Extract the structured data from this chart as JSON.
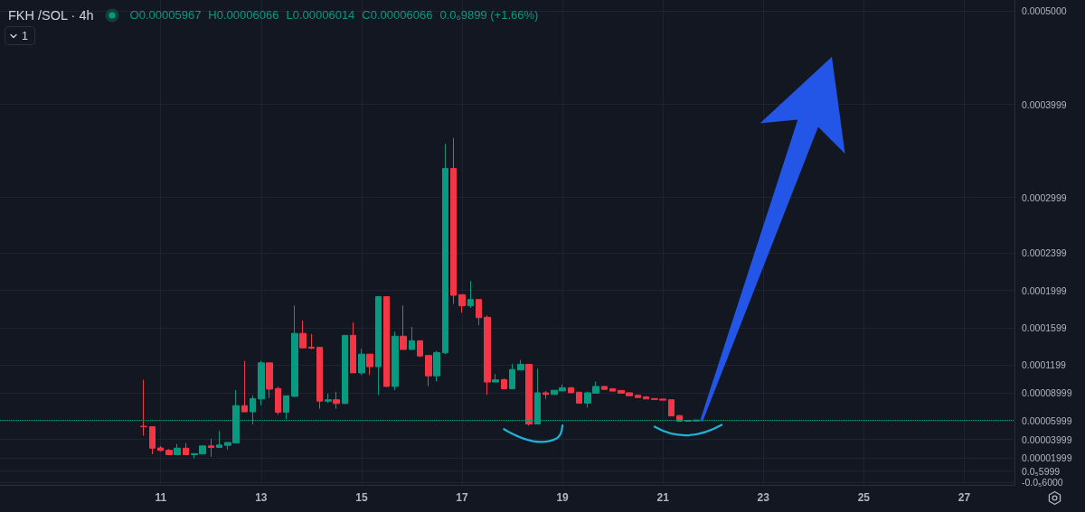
{
  "chart_data": {
    "type": "candlestick",
    "title": "FKH /SOL · 4h",
    "annotations": [
      "O0.00005967",
      "H0.00006066",
      "L0.00006014",
      "C0.00006066",
      "0.0₆9899 (+1.66%)",
      "1"
    ],
    "x": [
      10.667,
      10.833,
      11,
      11.167,
      11.333,
      11.5,
      11.667,
      11.833,
      12,
      12.167,
      12.333,
      12.5,
      12.667,
      12.833,
      13,
      13.167,
      13.333,
      13.5,
      13.667,
      13.833,
      14,
      14.167,
      14.333,
      14.5,
      14.667,
      14.833,
      15,
      15.167,
      15.333,
      15.5,
      15.667,
      15.833,
      16,
      16.167,
      16.333,
      16.5,
      16.667,
      16.833,
      17,
      17.167,
      17.333,
      17.5,
      17.667,
      17.833,
      18,
      18.167,
      18.333,
      18.5,
      18.667,
      18.833,
      19,
      19.167,
      19.333,
      19.5,
      19.667,
      19.833,
      20,
      20.167,
      20.333,
      20.5,
      20.667,
      20.833,
      21,
      21.167,
      21.333,
      21.5,
      21.667
    ],
    "ohlc": [
      [
        5.4e-05,
        0.000104,
        4.4e-05,
        5.35e-05
      ],
      [
        5.35e-05,
        5.35e-05,
        2.4e-05,
        3.05e-05
      ],
      [
        3.08e-05,
        3.29e-05,
        2.7e-05,
        2.8e-05
      ],
      [
        2.82e-05,
        2.96e-05,
        2.35e-05,
        2.35e-05
      ],
      [
        2.35e-05,
        3.49e-05,
        2.35e-05,
        3.05e-05
      ],
      [
        3.05e-05,
        3.6e-05,
        2.35e-05,
        2.35e-05
      ],
      [
        2.35e-05,
        2.51e-05,
        1.93e-05,
        2.46e-05
      ],
      [
        2.43e-05,
        3.29e-05,
        2.43e-05,
        3.29e-05
      ],
      [
        3.29e-05,
        4.07e-05,
        2.14e-05,
        3.12e-05
      ],
      [
        3.12e-05,
        4.89e-05,
        3.12e-05,
        3.39e-05
      ],
      [
        3.35e-05,
        3.66e-05,
        2.88e-05,
        3.66e-05
      ],
      [
        3.6e-05,
        9.29e-05,
        3.6e-05,
        7.62e-05
      ],
      [
        7.62e-05,
        0.0001243,
        6.95e-05,
        6.95e-05
      ],
      [
        6.95e-05,
        8.73e-05,
        5.6e-05,
        8.38e-05
      ],
      [
        8.34e-05,
        0.0001243,
        7.66e-05,
        0.0001221
      ],
      [
        0.0001221,
        0.0001221,
        8.45e-05,
        9.39e-05
      ],
      [
        9.45e-05,
        9.66e-05,
        6.63e-05,
        6.91e-05
      ],
      [
        6.91e-05,
        8.68e-05,
        6.17e-05,
        8.68e-05
      ],
      [
        8.62e-05,
        0.0001838,
        8.51e-05,
        0.0001538
      ],
      [
        0.0001538,
        0.0001676,
        0.0001382,
        0.0001382
      ],
      [
        0.000139,
        0.0001531,
        0.0001368,
        0.000138
      ],
      [
        0.0001388,
        0.0001388,
        7.29e-05,
        8.1e-05
      ],
      [
        8.1e-05,
        8.91e-05,
        7.91e-05,
        8.25e-05
      ],
      [
        8.25e-05,
        9.11e-05,
        7.29e-05,
        7.85e-05
      ],
      [
        7.85e-05,
        0.0001517,
        7.78e-05,
        0.0001517
      ],
      [
        0.0001517,
        0.0001657,
        0.0001114,
        0.0001114
      ],
      [
        0.0001114,
        0.0001372,
        0.000109,
        0.0001315
      ],
      [
        0.0001315,
        0.0001315,
        0.000109,
        0.000118
      ],
      [
        0.000118,
        0.0001933,
        8.75e-05,
        0.0001933
      ],
      [
        0.0001933,
        0.0001933,
        9.62e-05,
        9.68e-05
      ],
      [
        9.68e-05,
        0.0001556,
        9.29e-05,
        0.0001508
      ],
      [
        0.0001508,
        0.0001838,
        0.0001365,
        0.0001365
      ],
      [
        0.0001365,
        0.0001608,
        0.0001365,
        0.0001459
      ],
      [
        0.0001459,
        0.0001459,
        0.0001282,
        0.0001296
      ],
      [
        0.0001301,
        0.0001301,
        9.7e-05,
        0.0001082
      ],
      [
        0.0001082,
        0.0001351,
        0.0001022,
        0.0001332
      ],
      [
        0.0001329,
        0.0003573,
        0.0001315,
        0.000331
      ],
      [
        0.000331,
        0.0003638,
        0.0001855,
        0.0001947
      ],
      [
        0.0001954,
        0.0001954,
        0.000176,
        0.0001834
      ],
      [
        0.0001834,
        0.0002101,
        0.0001812,
        0.0001902
      ],
      [
        0.0001902,
        0.0001902,
        0.0001626,
        0.0001707
      ],
      [
        0.0001711,
        0.000173,
        8.78e-05,
        0.0001015
      ],
      [
        0.0001015,
        0.0001102,
        0.0001015,
        0.0001039
      ],
      [
        0.0001042,
        0.0001053,
        9.41e-05,
        9.43e-05
      ],
      [
        9.43e-05,
        0.0001209,
        9.36e-05,
        0.000115
      ],
      [
        0.0001145,
        0.0001253,
        0.0001145,
        0.0001206
      ],
      [
        0.0001206,
        0.0001206,
        5.48e-05,
        5.64e-05
      ],
      [
        5.64e-05,
        0.0001157,
        5.64e-05,
        9e-05
      ],
      [
        9e-05,
        9.18e-05,
        8.34e-05,
        8.82e-05
      ],
      [
        8.82e-05,
        9.27e-05,
        8.82e-05,
        9.27e-05
      ],
      [
        9.2e-05,
        9.89e-05,
        9.2e-05,
        9.54e-05
      ],
      [
        9.54e-05,
        9.63e-05,
        9e-05,
        9e-05
      ],
      [
        9.06e-05,
        9.06e-05,
        7.87e-05,
        7.87e-05
      ],
      [
        7.87e-05,
        9.11e-05,
        7.41e-05,
        9e-05
      ],
      [
        8.95e-05,
        0.0001022,
        8.95e-05,
        9.68e-05
      ],
      [
        9.68e-05,
        9.68e-05,
        9.36e-05,
        9.36e-05
      ],
      [
        9.43e-05,
        9.43e-05,
        9.18e-05,
        9.18e-05
      ],
      [
        9.25e-05,
        9.25e-05,
        8.95e-05,
        8.95e-05
      ],
      [
        9e-05,
        9e-05,
        8.68e-05,
        8.68e-05
      ],
      [
        8.73e-05,
        8.73e-05,
        8.49e-05,
        8.49e-05
      ],
      [
        8.55e-05,
        8.66e-05,
        8.34e-05,
        8.34e-05
      ],
      [
        8.38e-05,
        8.38e-05,
        8.28e-05,
        8.28e-05
      ],
      [
        8.32e-05,
        8.32e-05,
        8.21e-05,
        8.21e-05
      ],
      [
        8.25e-05,
        8.25e-05,
        6.51e-05,
        6.51e-05
      ],
      [
        6.55e-05,
        6.61e-05,
        5.94e-05,
        5.94e-05
      ],
      [
        6.02e-05,
        6.05e-05,
        5.94e-05,
        5.94e-05
      ],
      [
        5.97e-05,
        6.07e-05,
        5.97e-05,
        6.07e-05
      ]
    ],
    "colors": [
      "#f23645",
      "#f23645",
      "#f23645",
      "#f23645",
      "#089981",
      "#f23645",
      "#089981",
      "#089981",
      "#f23645",
      "#089981",
      "#089981",
      "#089981",
      "#f23645",
      "#089981",
      "#089981",
      "#f23645",
      "#f23645",
      "#089981",
      "#089981",
      "#f23645",
      "#f23645",
      "#f23645",
      "#089981",
      "#f23645",
      "#089981",
      "#f23645",
      "#089981",
      "#f23645",
      "#089981",
      "#f23645",
      "#089981",
      "#f23645",
      "#089981",
      "#f23645",
      "#f23645",
      "#089981",
      "#089981",
      "#f23645",
      "#f23645",
      "#089981",
      "#f23645",
      "#f23645",
      "#089981",
      "#f23645",
      "#089981",
      "#089981",
      "#f23645",
      "#089981",
      "#f23645",
      "#089981",
      "#089981",
      "#f23645",
      "#f23645",
      "#089981",
      "#089981",
      "#f23645",
      "#f23645",
      "#f23645",
      "#f23645",
      "#f23645",
      "#f23645",
      "#f23645",
      "#f23645",
      "#f23645",
      "#f23645",
      "#f23645",
      "#089981"
    ],
    "xlim": [
      7.8,
      28
    ],
    "xticks": [
      11,
      13,
      15,
      17,
      19,
      21,
      23,
      25,
      27
    ],
    "ylim": [
      -9e-06,
      0.000512
    ],
    "yticks": [
      {
        "value": -6e-06,
        "label": "-0.0₅6000"
      },
      {
        "value": 5.999e-06,
        "label": "0.0₅5999"
      },
      {
        "value": 1.999e-05,
        "label": "0.00001999"
      },
      {
        "value": 3.999e-05,
        "label": "0.00003999"
      },
      {
        "value": 5.999e-05,
        "label": "0.00005999"
      },
      {
        "value": 8.999e-05,
        "label": "0.00008999"
      },
      0.0001199,
      0.0001599,
      0.0001999,
      0.0002399,
      0.0002999,
      0.0003999,
      {
        "value": 0.0005,
        "label": "0.0005000"
      }
    ],
    "grid": true,
    "ref_lines": [
      {
        "axis": "y",
        "value": 6.066e-05,
        "color": "#089981",
        "line_style": "dotted"
      }
    ]
  }
}
